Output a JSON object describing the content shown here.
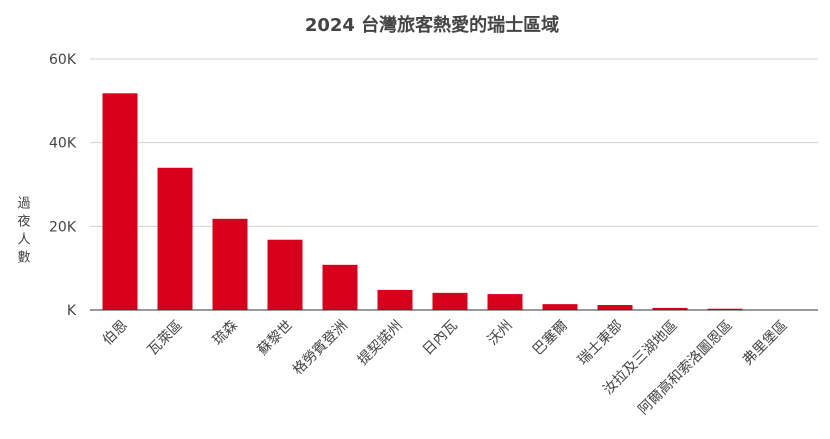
{
  "colors": {
    "bar": "#d6001c",
    "text": "#444444",
    "grid": "#d0d0d0",
    "axis": "#333333"
  },
  "chart_data": {
    "type": "bar",
    "title": "2024 台灣旅客熱愛的瑞士區域",
    "xlabel": "",
    "ylabel": "過夜人數",
    "ylim": [
      0,
      60000
    ],
    "yticks": [
      {
        "value": 0,
        "label": "K"
      },
      {
        "value": 20000,
        "label": "20K"
      },
      {
        "value": 40000,
        "label": "40K"
      },
      {
        "value": 60000,
        "label": "60K"
      }
    ],
    "grid": true,
    "legend": "none",
    "categories": [
      "伯恩",
      "瓦萊區",
      "琉森",
      "蘇黎世",
      "格勞賓登洲",
      "提契諾州",
      "日內瓦",
      "沃州",
      "巴塞爾",
      "瑞士東部",
      "汝拉及三湖地區",
      "阿爾高和索洛圖恩區",
      "弗里堡區"
    ],
    "values": [
      51800,
      34000,
      21800,
      16800,
      10800,
      4800,
      4100,
      3800,
      1400,
      1200,
      500,
      300,
      100
    ]
  }
}
